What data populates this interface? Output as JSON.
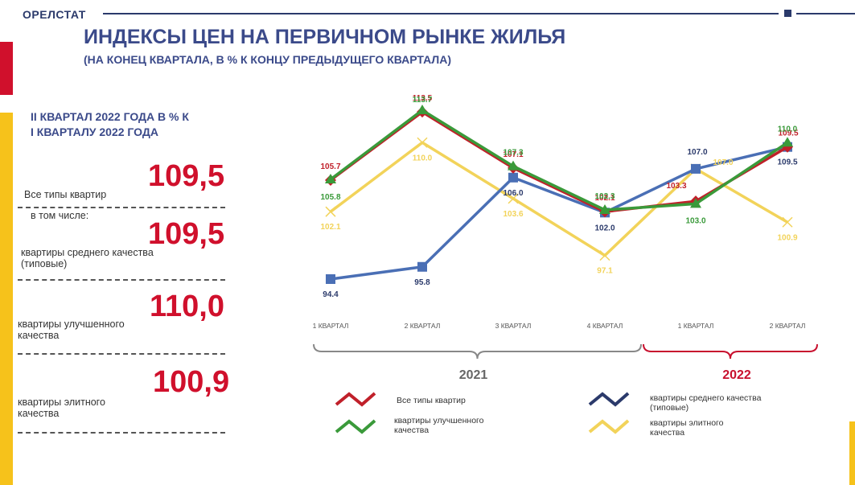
{
  "header": {
    "brand": "ОРЕЛСТАТ"
  },
  "title": "ИНДЕКСЫ ЦЕН НА ПЕРВИЧНОМ РЫНКЕ ЖИЛЬЯ",
  "subtitle": "(НА КОНЕЦ КВАРТАЛА, В % К КОНЦУ ПРЕДЫДУЩЕГО КВАРТАЛА)",
  "left_panel": {
    "heading_line1": "II КВАРТАЛ 2022 ГОДА В % К",
    "heading_line2": "I КВАРТАЛУ 2022 ГОДА",
    "all_label": "Все типы квартир",
    "all_value": "109,5",
    "including_label": "в том числе:",
    "mid_label_1": "квартиры среднего качества",
    "mid_label_2": "(типовые)",
    "mid_value": "109,5",
    "improved_label_1": "квартиры улучшенного",
    "improved_label_2": "качества",
    "improved_value": "110,0",
    "elite_label_1": "квартиры элитного",
    "elite_label_2": "качества",
    "elite_value": "100,9"
  },
  "chart_data": {
    "type": "line",
    "categories": [
      "1 КВАРТАЛ",
      "2 КВАРТАЛ",
      "3 КВАРТАЛ",
      "4 КВАРТАЛ",
      "1 КВАРТАЛ",
      "2 КВАРТАЛ"
    ],
    "groups": [
      {
        "label": "2021",
        "from": 0,
        "to": 3,
        "color": "#888888"
      },
      {
        "label": "2022",
        "from": 4,
        "to": 5,
        "color": "#c8102e"
      }
    ],
    "ylim": [
      92,
      116
    ],
    "series": [
      {
        "name": "Все типы квартир",
        "color": "#c0202a",
        "marker": "diamond",
        "values": [
          105.7,
          113.5,
          107.1,
          102.1,
          103.3,
          109.5
        ],
        "labels": [
          "105.7",
          "113.5",
          "107.1",
          "102.1",
          "103.3",
          "109.5"
        ]
      },
      {
        "name": "квартиры среднего качества (типовые)",
        "color": "#4a6fb5",
        "marker": "square",
        "values": [
          94.4,
          95.8,
          106.0,
          102.0,
          107.0,
          109.5
        ],
        "labels": [
          "94.4",
          "95.8",
          "106.0",
          "102.0",
          "107.0",
          "109.5"
        ]
      },
      {
        "name": "квартиры улучшенного качества",
        "color": "#3a9a3a",
        "marker": "triangle",
        "values": [
          105.8,
          113.7,
          107.3,
          102.3,
          103.0,
          110.0
        ],
        "labels": [
          "105.8",
          "113.7",
          "107.3",
          "102.3",
          "103.0",
          "110.0"
        ]
      },
      {
        "name": "квартиры элитного качества",
        "color": "#f2d35a",
        "marker": "x",
        "values": [
          102.1,
          110.0,
          103.6,
          97.1,
          107.0,
          100.9
        ],
        "labels": [
          "102.1",
          "110.0",
          "103.6",
          "97.1",
          "107.0",
          "100.9"
        ]
      }
    ],
    "legend": [
      {
        "text_1": "Все типы квартир",
        "text_2": "",
        "color": "#c0202a"
      },
      {
        "text_1": "квартиры среднего качества",
        "text_2": "(типовые)",
        "color": "#2b3a6b"
      },
      {
        "text_1": "квартиры улучшенного",
        "text_2": "качества",
        "color": "#3a9a3a"
      },
      {
        "text_1": "квартиры элитного",
        "text_2": "качества",
        "color": "#f2d35a"
      }
    ],
    "legend_position": "bottom",
    "grid": false
  }
}
